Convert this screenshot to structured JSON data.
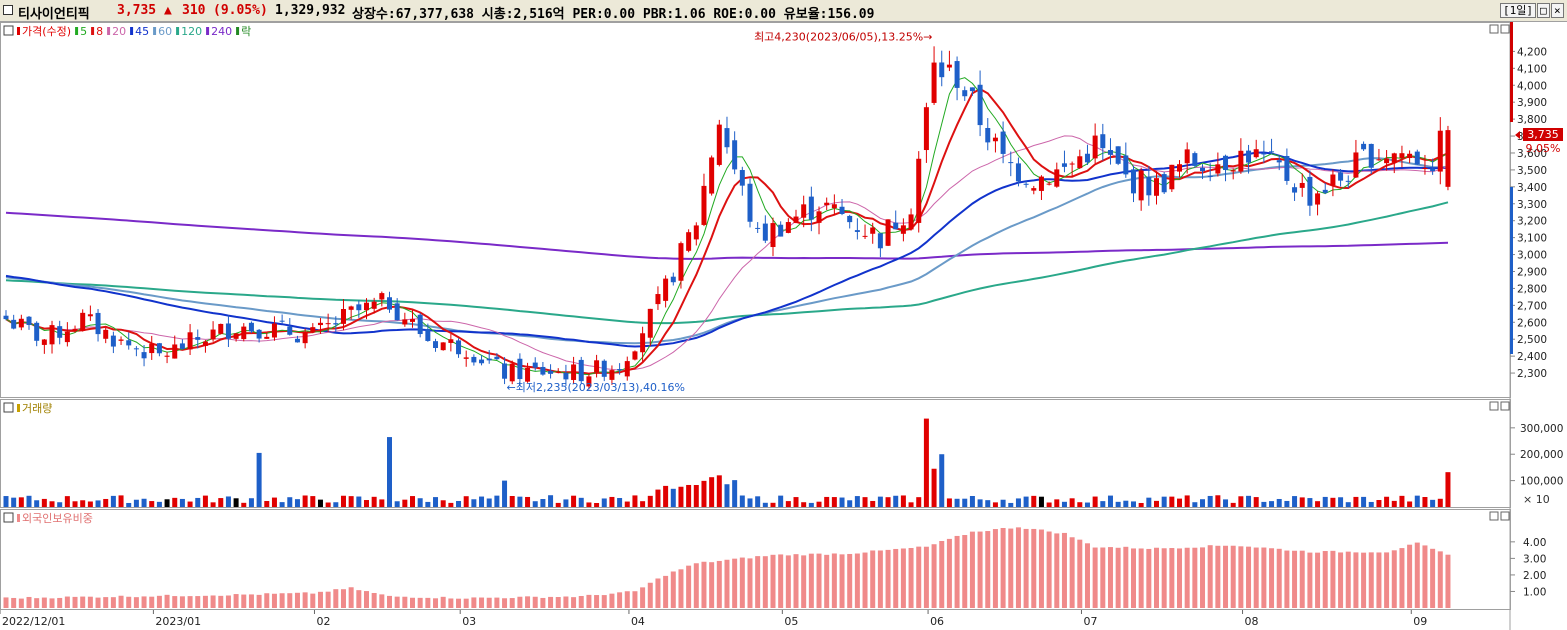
{
  "header": {
    "stock_name": "티사이언티픽",
    "price": "3,735",
    "change_arrow": "▲",
    "change": "310",
    "change_pct": "(9.05%)",
    "volume": "1,329,932",
    "info": "상장수:67,377,638 시총:2,516억 PER:0.00 PBR:1.06 ROE:0.00 유보율:156.09",
    "period_button": "[1일]"
  },
  "colors": {
    "up": "#e00000",
    "down": "#1e5fc8",
    "ma5": "#22aa22",
    "ma8": "#dd1111",
    "ma20": "#cc66aa",
    "ma45": "#1133cc",
    "ma60": "#6a9ac8",
    "ma120": "#2aa88a",
    "ma240": "#7a2ac8",
    "foreign": "#f08a8a",
    "frame": "#a0a0a0"
  },
  "panels": {
    "price": {
      "legend": [
        {
          "text": "가격(수정)",
          "color": "#e00000"
        },
        {
          "text": "5",
          "color": "#22aa22"
        },
        {
          "text": "8",
          "color": "#dd1111"
        },
        {
          "text": "20",
          "color": "#cc66aa"
        },
        {
          "text": "45",
          "color": "#1133cc"
        },
        {
          "text": "60",
          "color": "#6a9ac8"
        },
        {
          "text": "120",
          "color": "#2aa88a"
        },
        {
          "text": "240",
          "color": "#7a2ac8"
        },
        {
          "text": "락",
          "color": "#228822"
        }
      ],
      "high_label": "최고4,230(2023/06/05),13.25%→",
      "low_label": "←최저2,235(2023/03/13),40.16%",
      "last_price_label": "3,735",
      "last_pct_label": "9.05%"
    },
    "volume": {
      "legend": "거래량",
      "unit_label": "× 10"
    },
    "foreign": {
      "legend": "외국인보유비중"
    }
  },
  "chart_data": [
    {
      "type": "candlestick",
      "y_axis": {
        "range": [
          2200,
          4350
        ],
        "ticks": [
          "2,300",
          "2,400",
          "2,500",
          "2,600",
          "2,700",
          "2,800",
          "2,900",
          "3,000",
          "3,100",
          "3,200",
          "3,300",
          "3,400",
          "3,500",
          "3,600",
          "3,700",
          "3,800",
          "3,900",
          "4,000",
          "4,100",
          "4,200"
        ]
      },
      "x_axis": {
        "ticks": [
          {
            "label": "2022/12/01",
            "index": 0
          },
          {
            "label": "2023/01",
            "index": 20
          },
          {
            "label": "02",
            "index": 41
          },
          {
            "label": "03",
            "index": 60
          },
          {
            "label": "04",
            "index": 82
          },
          {
            "label": "05",
            "index": 102
          },
          {
            "label": "06",
            "index": 121
          },
          {
            "label": "07",
            "index": 141
          },
          {
            "label": "08",
            "index": 162
          },
          {
            "label": "09",
            "index": 184
          }
        ]
      },
      "anchors": [
        [
          0,
          2620
        ],
        [
          5,
          2500
        ],
        [
          10,
          2620
        ],
        [
          15,
          2480
        ],
        [
          20,
          2400
        ],
        [
          25,
          2500
        ],
        [
          30,
          2580
        ],
        [
          35,
          2560
        ],
        [
          40,
          2520
        ],
        [
          45,
          2650
        ],
        [
          50,
          2720
        ],
        [
          55,
          2500
        ],
        [
          60,
          2450
        ],
        [
          65,
          2300
        ],
        [
          70,
          2310
        ],
        [
          75,
          2300
        ],
        [
          80,
          2350
        ],
        [
          85,
          2700
        ],
        [
          90,
          3200
        ],
        [
          93,
          3800
        ],
        [
          95,
          3500
        ],
        [
          98,
          3100
        ],
        [
          102,
          3200
        ],
        [
          106,
          3300
        ],
        [
          110,
          3200
        ],
        [
          114,
          3100
        ],
        [
          118,
          3300
        ],
        [
          121,
          4100
        ],
        [
          124,
          4050
        ],
        [
          127,
          3800
        ],
        [
          130,
          3550
        ],
        [
          134,
          3450
        ],
        [
          138,
          3500
        ],
        [
          142,
          3650
        ],
        [
          146,
          3450
        ],
        [
          150,
          3400
        ],
        [
          154,
          3550
        ],
        [
          158,
          3550
        ],
        [
          162,
          3600
        ],
        [
          166,
          3500
        ],
        [
          170,
          3350
        ],
        [
          174,
          3450
        ],
        [
          178,
          3600
        ],
        [
          182,
          3600
        ],
        [
          186,
          3550
        ],
        [
          188,
          3735
        ]
      ],
      "high": {
        "value": 4230,
        "date": "2023/06/05",
        "pct": "13.25%"
      },
      "low": {
        "value": 2235,
        "date": "2023/03/13",
        "pct": "40.16%"
      },
      "last": {
        "value": 3735,
        "change": 310,
        "change_pct": "9.05%"
      },
      "moving_averages": [
        5,
        8,
        20,
        45,
        60,
        120,
        240
      ]
    },
    {
      "type": "bar",
      "title": "거래량",
      "y_axis": {
        "ticks": [
          "100,000",
          "200,000",
          "300,000"
        ],
        "unit": "× 10"
      }
    },
    {
      "type": "bar",
      "title": "외국인보유비중",
      "y_axis": {
        "ticks": [
          "1.00",
          "2.00",
          "3.00",
          "4.00"
        ]
      },
      "anchors": [
        [
          0,
          0.6
        ],
        [
          30,
          0.8
        ],
        [
          40,
          0.9
        ],
        [
          45,
          1.2
        ],
        [
          50,
          0.7
        ],
        [
          60,
          0.6
        ],
        [
          75,
          0.7
        ],
        [
          82,
          1.0
        ],
        [
          86,
          2.0
        ],
        [
          90,
          2.7
        ],
        [
          100,
          3.2
        ],
        [
          110,
          3.3
        ],
        [
          120,
          3.7
        ],
        [
          126,
          4.6
        ],
        [
          132,
          4.9
        ],
        [
          138,
          4.5
        ],
        [
          142,
          3.7
        ],
        [
          150,
          3.6
        ],
        [
          160,
          3.8
        ],
        [
          170,
          3.4
        ],
        [
          180,
          3.4
        ],
        [
          184,
          3.9
        ],
        [
          188,
          3.2
        ]
      ]
    }
  ]
}
